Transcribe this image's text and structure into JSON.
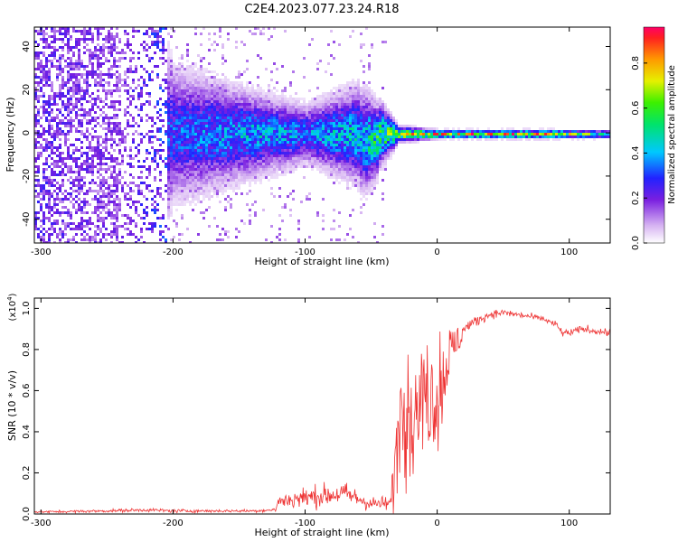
{
  "figure_title": "C2E4.2023.077.23.24.R18",
  "chart_data": [
    {
      "type": "heatmap",
      "title": "C2E4.2023.077.23.24.R18",
      "xlabel": "Height of straight line (km)",
      "ylabel": "Frequency (Hz)",
      "xlim": [
        -305,
        131
      ],
      "ylim": [
        -51,
        49
      ],
      "x_ticks": [
        -300,
        -200,
        -100,
        0,
        100
      ],
      "y_ticks": [
        -40,
        -20,
        0,
        20,
        40
      ],
      "colorbar": {
        "label": "Normalized spectral amplitude",
        "range": [
          0.0,
          0.96
        ],
        "ticks": [
          0.0,
          0.2,
          0.4,
          0.6,
          0.8
        ],
        "colormap": "rainbow (white -> purple -> blue -> cyan -> green -> yellow -> red)"
      },
      "description_points": [
        {
          "x": -300,
          "spread_hz": 49,
          "peak_amplitude": 0.25
        },
        {
          "x": -240,
          "spread_hz": 49,
          "peak_amplitude": 0.2
        },
        {
          "x": -200,
          "spread_hz": 16,
          "peak_amplitude": 0.35
        },
        {
          "x": -140,
          "spread_hz": 10,
          "peak_amplitude": 0.45
        },
        {
          "x": -100,
          "spread_hz": 7,
          "peak_amplitude": 0.4
        },
        {
          "x": -55,
          "spread_hz": 12,
          "peak_amplitude": 0.5
        },
        {
          "x": -30,
          "spread_hz": 2,
          "peak_amplitude": 0.75
        },
        {
          "x": 0,
          "spread_hz": 1,
          "peak_amplitude": 0.85
        },
        {
          "x": 85,
          "spread_hz": 1,
          "peak_amplitude": 0.9
        },
        {
          "x": 131,
          "spread_hz": 1,
          "peak_amplitude": 0.5
        }
      ]
    },
    {
      "type": "line",
      "xlabel": "Height of straight line (km)",
      "ylabel": "SNR (10 * v/v)",
      "y_multiplier_label": "(x10",
      "y_multiplier_exp": "4",
      "xlim": [
        -305,
        131
      ],
      "ylim": [
        0.0,
        1.05
      ],
      "x_ticks": [
        -300,
        -200,
        -100,
        0,
        100
      ],
      "y_ticks": [
        0.0,
        0.2,
        0.4,
        0.6,
        0.8,
        1.0
      ],
      "color": "#ee3333",
      "series": [
        {
          "name": "SNR",
          "x": [
            -305,
            -280,
            -250,
            -220,
            -200,
            -170,
            -140,
            -122,
            -121,
            -110,
            -100,
            -85,
            -70,
            -50,
            -40,
            -35,
            -30,
            -25,
            -20,
            -15,
            -10,
            -5,
            0,
            5,
            10,
            15,
            20,
            30,
            40,
            50,
            60,
            70,
            80,
            90,
            95,
            100,
            110,
            120,
            131
          ],
          "y": [
            0.01,
            0.012,
            0.015,
            0.02,
            0.015,
            0.015,
            0.015,
            0.02,
            0.06,
            0.07,
            0.08,
            0.09,
            0.1,
            0.05,
            0.05,
            0.05,
            0.35,
            0.6,
            0.45,
            0.5,
            0.55,
            0.6,
            0.55,
            0.65,
            0.8,
            0.82,
            0.9,
            0.94,
            0.97,
            0.98,
            0.97,
            0.96,
            0.95,
            0.92,
            0.88,
            0.88,
            0.9,
            0.89,
            0.88
          ],
          "noise_amplitude": [
            0.006,
            0.007,
            0.008,
            0.01,
            0.01,
            0.008,
            0.008,
            0.01,
            0.04,
            0.05,
            0.06,
            0.06,
            0.06,
            0.04,
            0.04,
            0.04,
            0.25,
            0.3,
            0.3,
            0.25,
            0.3,
            0.25,
            0.25,
            0.2,
            0.15,
            0.1,
            0.05,
            0.03,
            0.02,
            0.02,
            0.02,
            0.015,
            0.015,
            0.02,
            0.02,
            0.02,
            0.02,
            0.02,
            0.02
          ]
        }
      ]
    }
  ]
}
